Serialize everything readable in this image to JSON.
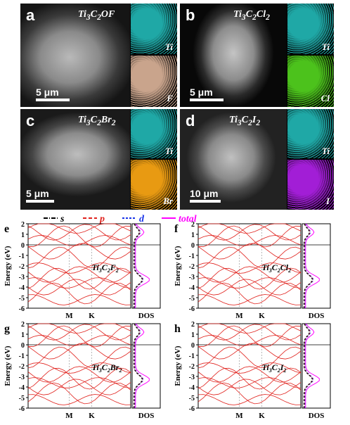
{
  "sem_panels": [
    {
      "letter": "a",
      "formula_main": "Ti",
      "formula_sub1": "3",
      "formula_mid": "C",
      "formula_sub2": "2",
      "formula_tail": "OF",
      "scale": "5 μm",
      "map1_label": "Ti",
      "map1_color": "#1fa8a6",
      "map2_label": "F",
      "map2_color": "#c9a48c"
    },
    {
      "letter": "b",
      "formula_main": "Ti",
      "formula_sub1": "3",
      "formula_mid": "C",
      "formula_sub2": "2",
      "formula_tail": "Cl",
      "formula_sub3": "2",
      "scale": "5 μm",
      "map1_label": "Ti",
      "map1_color": "#1fa8a6",
      "map2_label": "Cl",
      "map2_color": "#4cc21c"
    },
    {
      "letter": "c",
      "formula_main": "Ti",
      "formula_sub1": "3",
      "formula_mid": "C",
      "formula_sub2": "2",
      "formula_tail": "Br",
      "formula_sub3": "2",
      "scale": "5 μm",
      "map1_label": "Ti",
      "map1_color": "#1fa8a6",
      "map2_label": "Br",
      "map2_color": "#e89a12"
    },
    {
      "letter": "d",
      "formula_main": "Ti",
      "formula_sub1": "3",
      "formula_mid": "C",
      "formula_sub2": "2",
      "formula_tail": "I",
      "formula_sub3": "2",
      "scale": "10 μm",
      "map1_label": "Ti",
      "map1_color": "#1fa8a6",
      "map2_label": "I",
      "map2_color": "#a21ed6"
    }
  ],
  "legend": {
    "items": [
      {
        "label": "s",
        "color": "#000000"
      },
      {
        "label": "p",
        "color": "#e0201b"
      },
      {
        "label": "d",
        "color": "#1833e8"
      },
      {
        "label": "total",
        "color": "#ff00ff"
      }
    ]
  },
  "band_panels": [
    {
      "letter": "e",
      "formula": "Ti3C2F2"
    },
    {
      "letter": "f",
      "formula": "Ti3C2Cl2"
    },
    {
      "letter": "g",
      "formula": "Ti3C2Br2"
    },
    {
      "letter": "h",
      "formula": "Ti3C2I2"
    }
  ],
  "chart_data": {
    "type": "line",
    "ylabel": "Energy (eV)",
    "ylim": [
      -6,
      2
    ],
    "yticks": [
      "2",
      "1",
      "0",
      "-1",
      "-2",
      "-3",
      "-4",
      "-5",
      "-6"
    ],
    "xticks": [
      "M",
      "K"
    ],
    "dos_label": "DOS",
    "band_color": "#e0201b",
    "fermi_level": 0
  }
}
